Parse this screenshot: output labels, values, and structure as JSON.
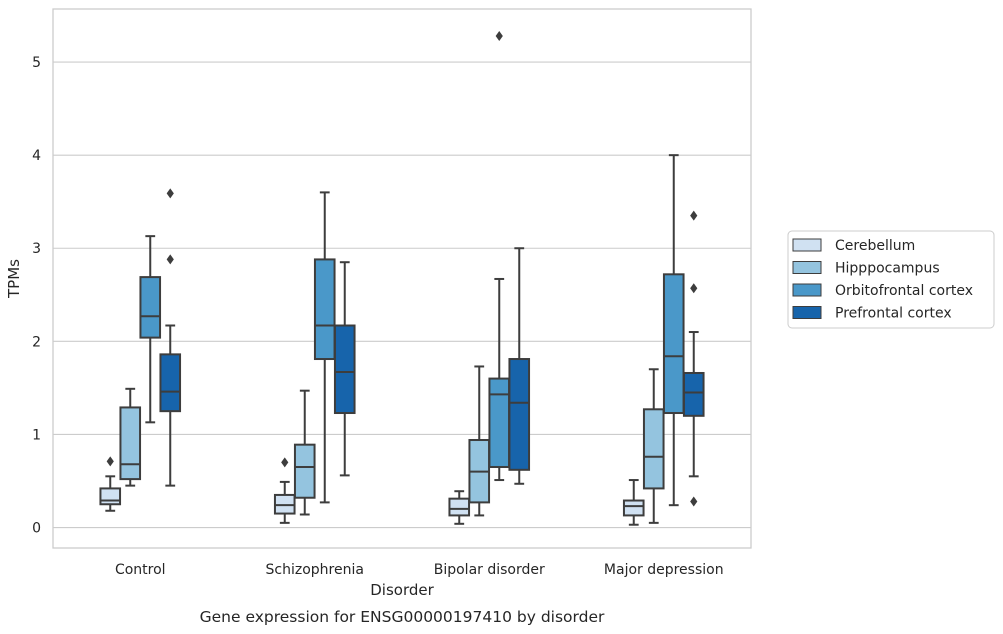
{
  "caption": "Gene expression for ENSG00000197410 by disorder",
  "chart_data": {
    "type": "box",
    "xlabel": "Disorder",
    "ylabel": "TPMs",
    "ylim": [
      -0.22,
      5.57
    ],
    "yticks": [
      0,
      1,
      2,
      3,
      4,
      5
    ],
    "grid": "horizontal",
    "legend_position": "right",
    "categories": [
      "Control",
      "Schizophrenia",
      "Bipolar disorder",
      "Major depression"
    ],
    "series": [
      {
        "name": "Cerebellum",
        "color": "#d0e1f2",
        "boxes": [
          {
            "whisker_low": 0.18,
            "q1": 0.25,
            "median": 0.29,
            "q3": 0.42,
            "whisker_high": 0.55,
            "outliers": [
              0.71
            ]
          },
          {
            "whisker_low": 0.05,
            "q1": 0.15,
            "median": 0.24,
            "q3": 0.35,
            "whisker_high": 0.49,
            "outliers": [
              0.7
            ]
          },
          {
            "whisker_low": 0.04,
            "q1": 0.13,
            "median": 0.2,
            "q3": 0.31,
            "whisker_high": 0.39,
            "outliers": []
          },
          {
            "whisker_low": 0.03,
            "q1": 0.13,
            "median": 0.23,
            "q3": 0.29,
            "whisker_high": 0.51,
            "outliers": []
          }
        ]
      },
      {
        "name": "Hipppocampus",
        "color": "#94c4df",
        "boxes": [
          {
            "whisker_low": 0.45,
            "q1": 0.52,
            "median": 0.68,
            "q3": 1.29,
            "whisker_high": 1.49,
            "outliers": []
          },
          {
            "whisker_low": 0.14,
            "q1": 0.32,
            "median": 0.65,
            "q3": 0.89,
            "whisker_high": 1.47,
            "outliers": []
          },
          {
            "whisker_low": 0.13,
            "q1": 0.27,
            "median": 0.6,
            "q3": 0.94,
            "whisker_high": 1.73,
            "outliers": []
          },
          {
            "whisker_low": 0.05,
            "q1": 0.42,
            "median": 0.76,
            "q3": 1.27,
            "whisker_high": 1.7,
            "outliers": []
          }
        ]
      },
      {
        "name": "Orbitofrontal cortex",
        "color": "#4a98c9",
        "boxes": [
          {
            "whisker_low": 1.13,
            "q1": 2.04,
            "median": 2.27,
            "q3": 2.69,
            "whisker_high": 3.13,
            "outliers": []
          },
          {
            "whisker_low": 0.27,
            "q1": 1.81,
            "median": 2.17,
            "q3": 2.88,
            "whisker_high": 3.6,
            "outliers": []
          },
          {
            "whisker_low": 0.51,
            "q1": 0.65,
            "median": 1.43,
            "q3": 1.6,
            "whisker_high": 2.67,
            "outliers": [
              5.28
            ]
          },
          {
            "whisker_low": 0.24,
            "q1": 1.23,
            "median": 1.84,
            "q3": 2.72,
            "whisker_high": 4.0,
            "outliers": []
          }
        ]
      },
      {
        "name": "Prefrontal cortex",
        "color": "#1764ab",
        "boxes": [
          {
            "whisker_low": 0.45,
            "q1": 1.25,
            "median": 1.46,
            "q3": 1.86,
            "whisker_high": 2.17,
            "outliers": [
              2.88,
              3.59
            ]
          },
          {
            "whisker_low": 0.56,
            "q1": 1.23,
            "median": 1.67,
            "q3": 2.17,
            "whisker_high": 2.85,
            "outliers": []
          },
          {
            "whisker_low": 0.47,
            "q1": 0.62,
            "median": 1.34,
            "q3": 1.81,
            "whisker_high": 3.0,
            "outliers": []
          },
          {
            "whisker_low": 0.55,
            "q1": 1.2,
            "median": 1.45,
            "q3": 1.66,
            "whisker_high": 2.1,
            "outliers": [
              0.28,
              2.57,
              3.35
            ]
          }
        ]
      }
    ]
  }
}
